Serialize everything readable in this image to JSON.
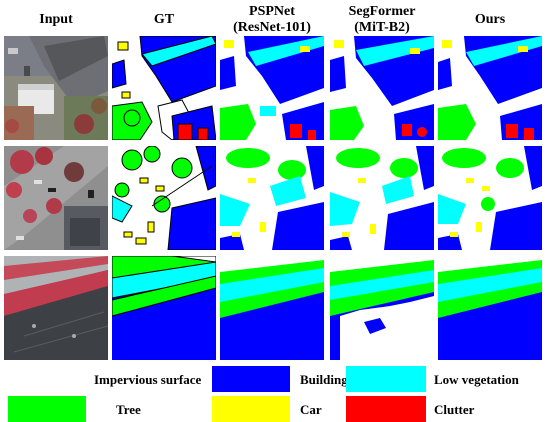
{
  "columns": [
    {
      "line1": "Input",
      "line2": ""
    },
    {
      "line1": "GT",
      "line2": ""
    },
    {
      "line1": "PSPNet",
      "line2": "(ResNet-101)"
    },
    {
      "line1": "SegFormer",
      "line2": "(MiT-B2)"
    },
    {
      "line1": "Ours",
      "line2": ""
    }
  ],
  "legend": [
    {
      "label": "Impervious surface",
      "color": "#ffffff"
    },
    {
      "label": "Building",
      "color": "#0000ff"
    },
    {
      "label": "Low vegetation",
      "color": "#00ffff"
    },
    {
      "label": "Tree",
      "color": "#00ff00"
    },
    {
      "label": "Car",
      "color": "#ffff00"
    },
    {
      "label": "Clutter",
      "color": "#ff0000"
    }
  ],
  "colors": {
    "impervious": "#ffffff",
    "building": "#0000ff",
    "low_vegetation": "#00ffff",
    "tree": "#00ff00",
    "car": "#ffff00",
    "clutter": "#ff0000"
  }
}
